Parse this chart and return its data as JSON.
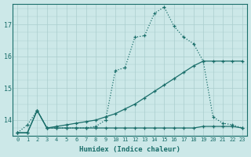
{
  "xlabel": "Humidex (Indice chaleur)",
  "bg_color": "#cce8e8",
  "line_color": "#1a6e6a",
  "grid_color": "#aacece",
  "xlim": [
    -0.5,
    23.5
  ],
  "ylim": [
    13.5,
    17.65
  ],
  "yticks": [
    14,
    15,
    16,
    17
  ],
  "xticks": [
    0,
    1,
    2,
    3,
    4,
    5,
    6,
    7,
    8,
    9,
    10,
    11,
    12,
    13,
    14,
    15,
    16,
    17,
    18,
    19,
    20,
    21,
    22,
    23
  ],
  "line1_x": [
    0,
    1,
    2,
    3,
    4,
    5,
    6,
    7,
    8,
    9,
    10,
    11,
    12,
    13,
    14,
    15,
    16,
    17,
    18,
    19,
    20,
    21,
    22,
    23
  ],
  "line1_y": [
    13.6,
    13.85,
    14.3,
    13.75,
    13.75,
    13.75,
    13.75,
    13.75,
    13.8,
    14.0,
    15.55,
    15.65,
    16.6,
    16.65,
    17.35,
    17.55,
    16.95,
    16.6,
    16.4,
    15.85,
    14.1,
    13.9,
    13.85,
    13.75
  ],
  "line2_x": [
    0,
    1,
    2,
    3,
    4,
    5,
    6,
    7,
    8,
    9,
    10,
    11,
    12,
    13,
    14,
    15,
    16,
    17,
    18,
    19,
    20,
    21,
    22,
    23
  ],
  "line2_y": [
    13.6,
    13.6,
    14.3,
    13.75,
    13.8,
    13.85,
    13.9,
    13.95,
    14.0,
    14.1,
    14.2,
    14.35,
    14.5,
    14.7,
    14.9,
    15.1,
    15.3,
    15.5,
    15.7,
    15.85,
    15.85,
    15.85,
    15.85,
    15.85
  ],
  "line3_x": [
    0,
    1,
    2,
    3,
    4,
    5,
    6,
    7,
    8,
    9,
    10,
    11,
    12,
    13,
    14,
    15,
    16,
    17,
    18,
    19,
    20,
    21,
    22,
    23
  ],
  "line3_y": [
    13.6,
    13.6,
    14.3,
    13.75,
    13.75,
    13.75,
    13.75,
    13.75,
    13.75,
    13.75,
    13.75,
    13.75,
    13.75,
    13.75,
    13.75,
    13.75,
    13.75,
    13.75,
    13.75,
    13.8,
    13.8,
    13.8,
    13.8,
    13.75
  ]
}
